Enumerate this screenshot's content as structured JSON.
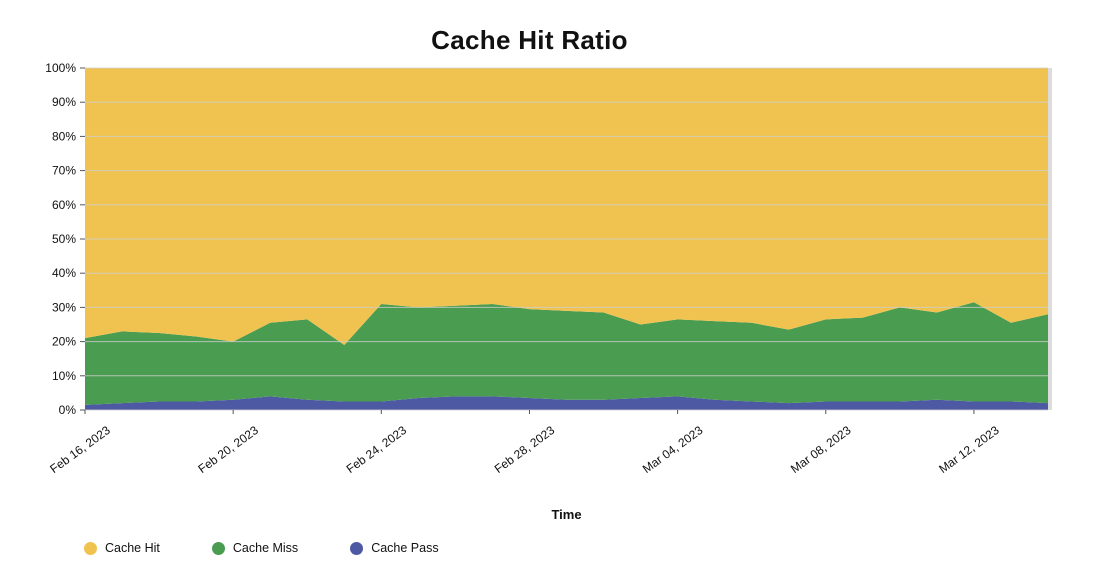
{
  "title": "Cache Hit Ratio",
  "chart_data": {
    "type": "area",
    "stacked": true,
    "title": "Cache Hit Ratio",
    "xlabel": "Time",
    "grid": true,
    "legend_position": "bottom-left",
    "background_color": "#FFFFFF",
    "grid_color": "#CFCFCF",
    "y_axis": {
      "min": 0,
      "max": 100,
      "tick_step": 10,
      "unit": "%",
      "tick_labels": [
        "0%",
        "10%",
        "20%",
        "30%",
        "40%",
        "50%",
        "60%",
        "70%",
        "80%",
        "90%",
        "100%"
      ]
    },
    "x_tick_labels": [
      "Feb 16, 2023",
      "Feb 20, 2023",
      "Feb 24, 2023",
      "Feb 28, 2023",
      "Mar 04, 2023",
      "Mar 08, 2023",
      "Mar 12, 2023"
    ],
    "x_tick_indices": [
      0,
      4,
      8,
      12,
      16,
      20,
      24
    ],
    "x": [
      "Feb 16",
      "Feb 17",
      "Feb 18",
      "Feb 19",
      "Feb 20",
      "Feb 21",
      "Feb 22",
      "Feb 23",
      "Feb 24",
      "Feb 25",
      "Feb 26",
      "Feb 27",
      "Feb 28",
      "Mar 01",
      "Mar 02",
      "Mar 03",
      "Mar 04",
      "Mar 05",
      "Mar 06",
      "Mar 07",
      "Mar 08",
      "Mar 09",
      "Mar 10",
      "Mar 11",
      "Mar 12",
      "Mar 13",
      "Mar 14"
    ],
    "stack_order": [
      "Cache Pass",
      "Cache Miss",
      "Cache Hit"
    ],
    "series": [
      {
        "name": "Cache Hit",
        "color": "#F0C350",
        "values": [
          79,
          77,
          77.5,
          78.5,
          80,
          74.5,
          73.5,
          81,
          69,
          70,
          69.5,
          69,
          70.5,
          71,
          71.5,
          75,
          73.5,
          74,
          74.5,
          76.5,
          73.5,
          73,
          70,
          71.5,
          68.5,
          74.5,
          72
        ]
      },
      {
        "name": "Cache Miss",
        "color": "#4A9C51",
        "values": [
          19.5,
          21,
          20,
          19,
          17,
          21.5,
          23.5,
          16.5,
          28.5,
          26.5,
          26.5,
          27,
          26,
          26,
          25.5,
          21.5,
          22.5,
          23,
          23,
          21.5,
          24,
          24.5,
          27.5,
          25.5,
          29,
          23,
          26
        ]
      },
      {
        "name": "Cache Pass",
        "color": "#4E59A3",
        "values": [
          1.5,
          2,
          2.5,
          2.5,
          3,
          4,
          3,
          2.5,
          2.5,
          3.5,
          4,
          4,
          3.5,
          3,
          3,
          3.5,
          4,
          3,
          2.5,
          2,
          2.5,
          2.5,
          2.5,
          3,
          2.5,
          2.5,
          2
        ]
      }
    ]
  }
}
